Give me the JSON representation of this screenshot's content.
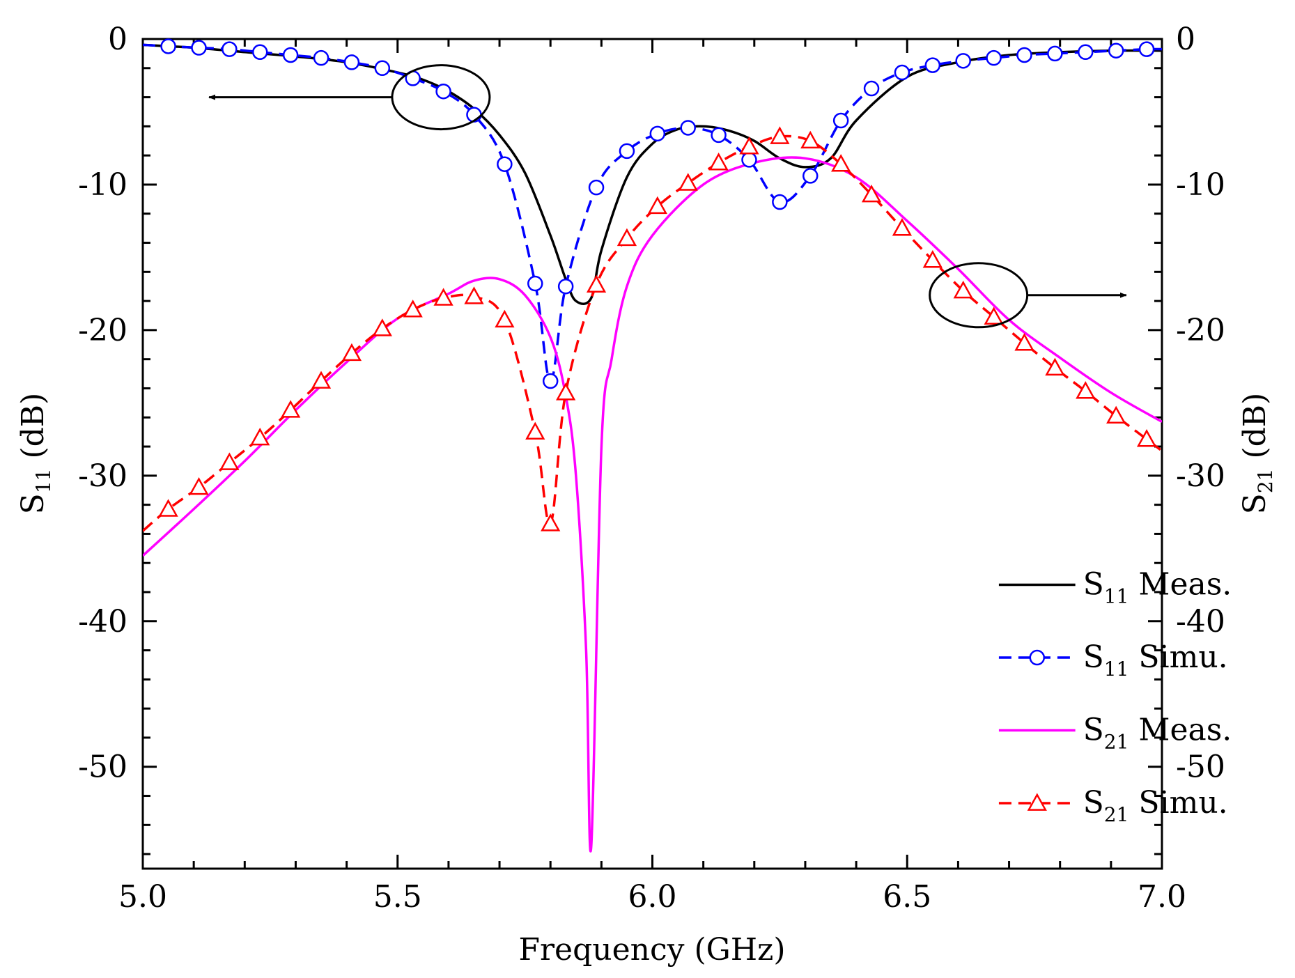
{
  "chart_data": {
    "type": "line",
    "title": "",
    "xlabel": "Frequency (GHz)",
    "ylabel_left": {
      "main": "S",
      "sub": "11",
      "unit": " (dB)"
    },
    "ylabel_right": {
      "main": "S",
      "sub": "21",
      "unit": " (dB)"
    },
    "xlim": [
      5.0,
      7.0
    ],
    "ylim": [
      -57,
      0
    ],
    "x_ticks": [
      5.0,
      5.5,
      6.0,
      6.5,
      7.0
    ],
    "x_tick_labels": [
      "5.0",
      "5.5",
      "6.0",
      "6.5",
      "7.0"
    ],
    "y_ticks": [
      0,
      -10,
      -20,
      -30,
      -40,
      -50
    ],
    "y_tick_labels": [
      "0",
      "-10",
      "-20",
      "-30",
      "-40",
      "-50"
    ],
    "grid": false,
    "legend_position": "bottom-right",
    "series": [
      {
        "name": "Meas.",
        "name_main": "S",
        "name_sub": "11",
        "color": "#000000",
        "dash": "solid",
        "marker": "none",
        "x": [
          5.0,
          5.1,
          5.2,
          5.3,
          5.4,
          5.5,
          5.55,
          5.6,
          5.65,
          5.7,
          5.75,
          5.8,
          5.83,
          5.85,
          5.88,
          5.9,
          5.95,
          6.0,
          6.05,
          6.1,
          6.15,
          6.2,
          6.25,
          6.3,
          6.35,
          6.4,
          6.5,
          6.6,
          6.7,
          6.8,
          6.9,
          7.0
        ],
        "y": [
          -0.4,
          -0.6,
          -0.9,
          -1.2,
          -1.6,
          -2.3,
          -2.8,
          -3.6,
          -4.8,
          -6.6,
          -9.2,
          -13.5,
          -16.5,
          -18.0,
          -17.8,
          -14.5,
          -9.5,
          -7.2,
          -6.2,
          -6.0,
          -6.3,
          -7.0,
          -8.2,
          -8.8,
          -8.2,
          -5.6,
          -2.6,
          -1.6,
          -1.1,
          -0.9,
          -0.8,
          -0.8
        ]
      },
      {
        "name": "Simu.",
        "name_main": "S",
        "name_sub": "11",
        "color": "#0000ff",
        "dash": "dashed",
        "marker": "circle",
        "x": [
          5.0,
          5.05,
          5.11,
          5.17,
          5.23,
          5.29,
          5.35,
          5.41,
          5.47,
          5.53,
          5.59,
          5.65,
          5.71,
          5.77,
          5.8,
          5.83,
          5.89,
          5.95,
          6.01,
          6.07,
          6.13,
          6.19,
          6.25,
          6.31,
          6.37,
          6.43,
          6.49,
          6.55,
          6.61,
          6.67,
          6.73,
          6.79,
          6.85,
          6.91,
          6.97,
          7.0
        ],
        "y": [
          -0.4,
          -0.5,
          -0.6,
          -0.7,
          -0.9,
          -1.1,
          -1.3,
          -1.6,
          -2.0,
          -2.7,
          -3.6,
          -5.2,
          -8.6,
          -16.8,
          -23.5,
          -17.0,
          -10.2,
          -7.7,
          -6.5,
          -6.1,
          -6.6,
          -8.3,
          -11.2,
          -9.4,
          -5.6,
          -3.4,
          -2.3,
          -1.8,
          -1.5,
          -1.3,
          -1.1,
          -1.0,
          -0.9,
          -0.8,
          -0.7,
          -0.7
        ]
      },
      {
        "name": "Meas.",
        "name_main": "S",
        "name_sub": "21",
        "color": "#ff00ff",
        "dash": "solid",
        "marker": "none",
        "x": [
          5.0,
          5.1,
          5.2,
          5.3,
          5.4,
          5.5,
          5.6,
          5.65,
          5.7,
          5.75,
          5.8,
          5.83,
          5.85,
          5.87,
          5.88,
          5.9,
          5.92,
          5.95,
          6.0,
          6.1,
          6.2,
          6.3,
          6.4,
          6.5,
          6.6,
          6.7,
          6.8,
          6.9,
          7.0
        ],
        "y": [
          -35.5,
          -32.3,
          -29.0,
          -25.5,
          -22.2,
          -19.2,
          -17.5,
          -16.6,
          -16.5,
          -17.6,
          -20.5,
          -24.5,
          -30.0,
          -42.0,
          -55.5,
          -28.0,
          -22.0,
          -17.0,
          -13.5,
          -10.0,
          -8.5,
          -8.2,
          -9.5,
          -12.5,
          -15.8,
          -19.3,
          -21.9,
          -24.3,
          -26.3
        ]
      },
      {
        "name": "Simu.",
        "name_main": "S",
        "name_sub": "21",
        "color": "#ff0000",
        "dash": "dashed",
        "marker": "triangle",
        "x": [
          5.0,
          5.05,
          5.11,
          5.17,
          5.23,
          5.29,
          5.35,
          5.41,
          5.47,
          5.53,
          5.59,
          5.65,
          5.71,
          5.77,
          5.8,
          5.83,
          5.89,
          5.95,
          6.01,
          6.07,
          6.13,
          6.19,
          6.25,
          6.31,
          6.37,
          6.43,
          6.49,
          6.55,
          6.61,
          6.67,
          6.73,
          6.79,
          6.85,
          6.91,
          6.97,
          7.0
        ],
        "y": [
          -33.8,
          -32.3,
          -30.8,
          -29.1,
          -27.4,
          -25.5,
          -23.5,
          -21.6,
          -19.9,
          -18.6,
          -17.8,
          -17.7,
          -19.3,
          -27.0,
          -33.3,
          -24.3,
          -16.9,
          -13.7,
          -11.5,
          -9.9,
          -8.5,
          -7.4,
          -6.7,
          -7.0,
          -8.6,
          -10.7,
          -13.0,
          -15.2,
          -17.3,
          -19.1,
          -20.9,
          -22.6,
          -24.2,
          -25.9,
          -27.5,
          -28.3
        ]
      }
    ],
    "annotations": [
      {
        "type": "ellipse-arrow",
        "target_axis": "left",
        "direction": "left"
      },
      {
        "type": "ellipse-arrow",
        "target_axis": "right",
        "direction": "right"
      }
    ]
  }
}
